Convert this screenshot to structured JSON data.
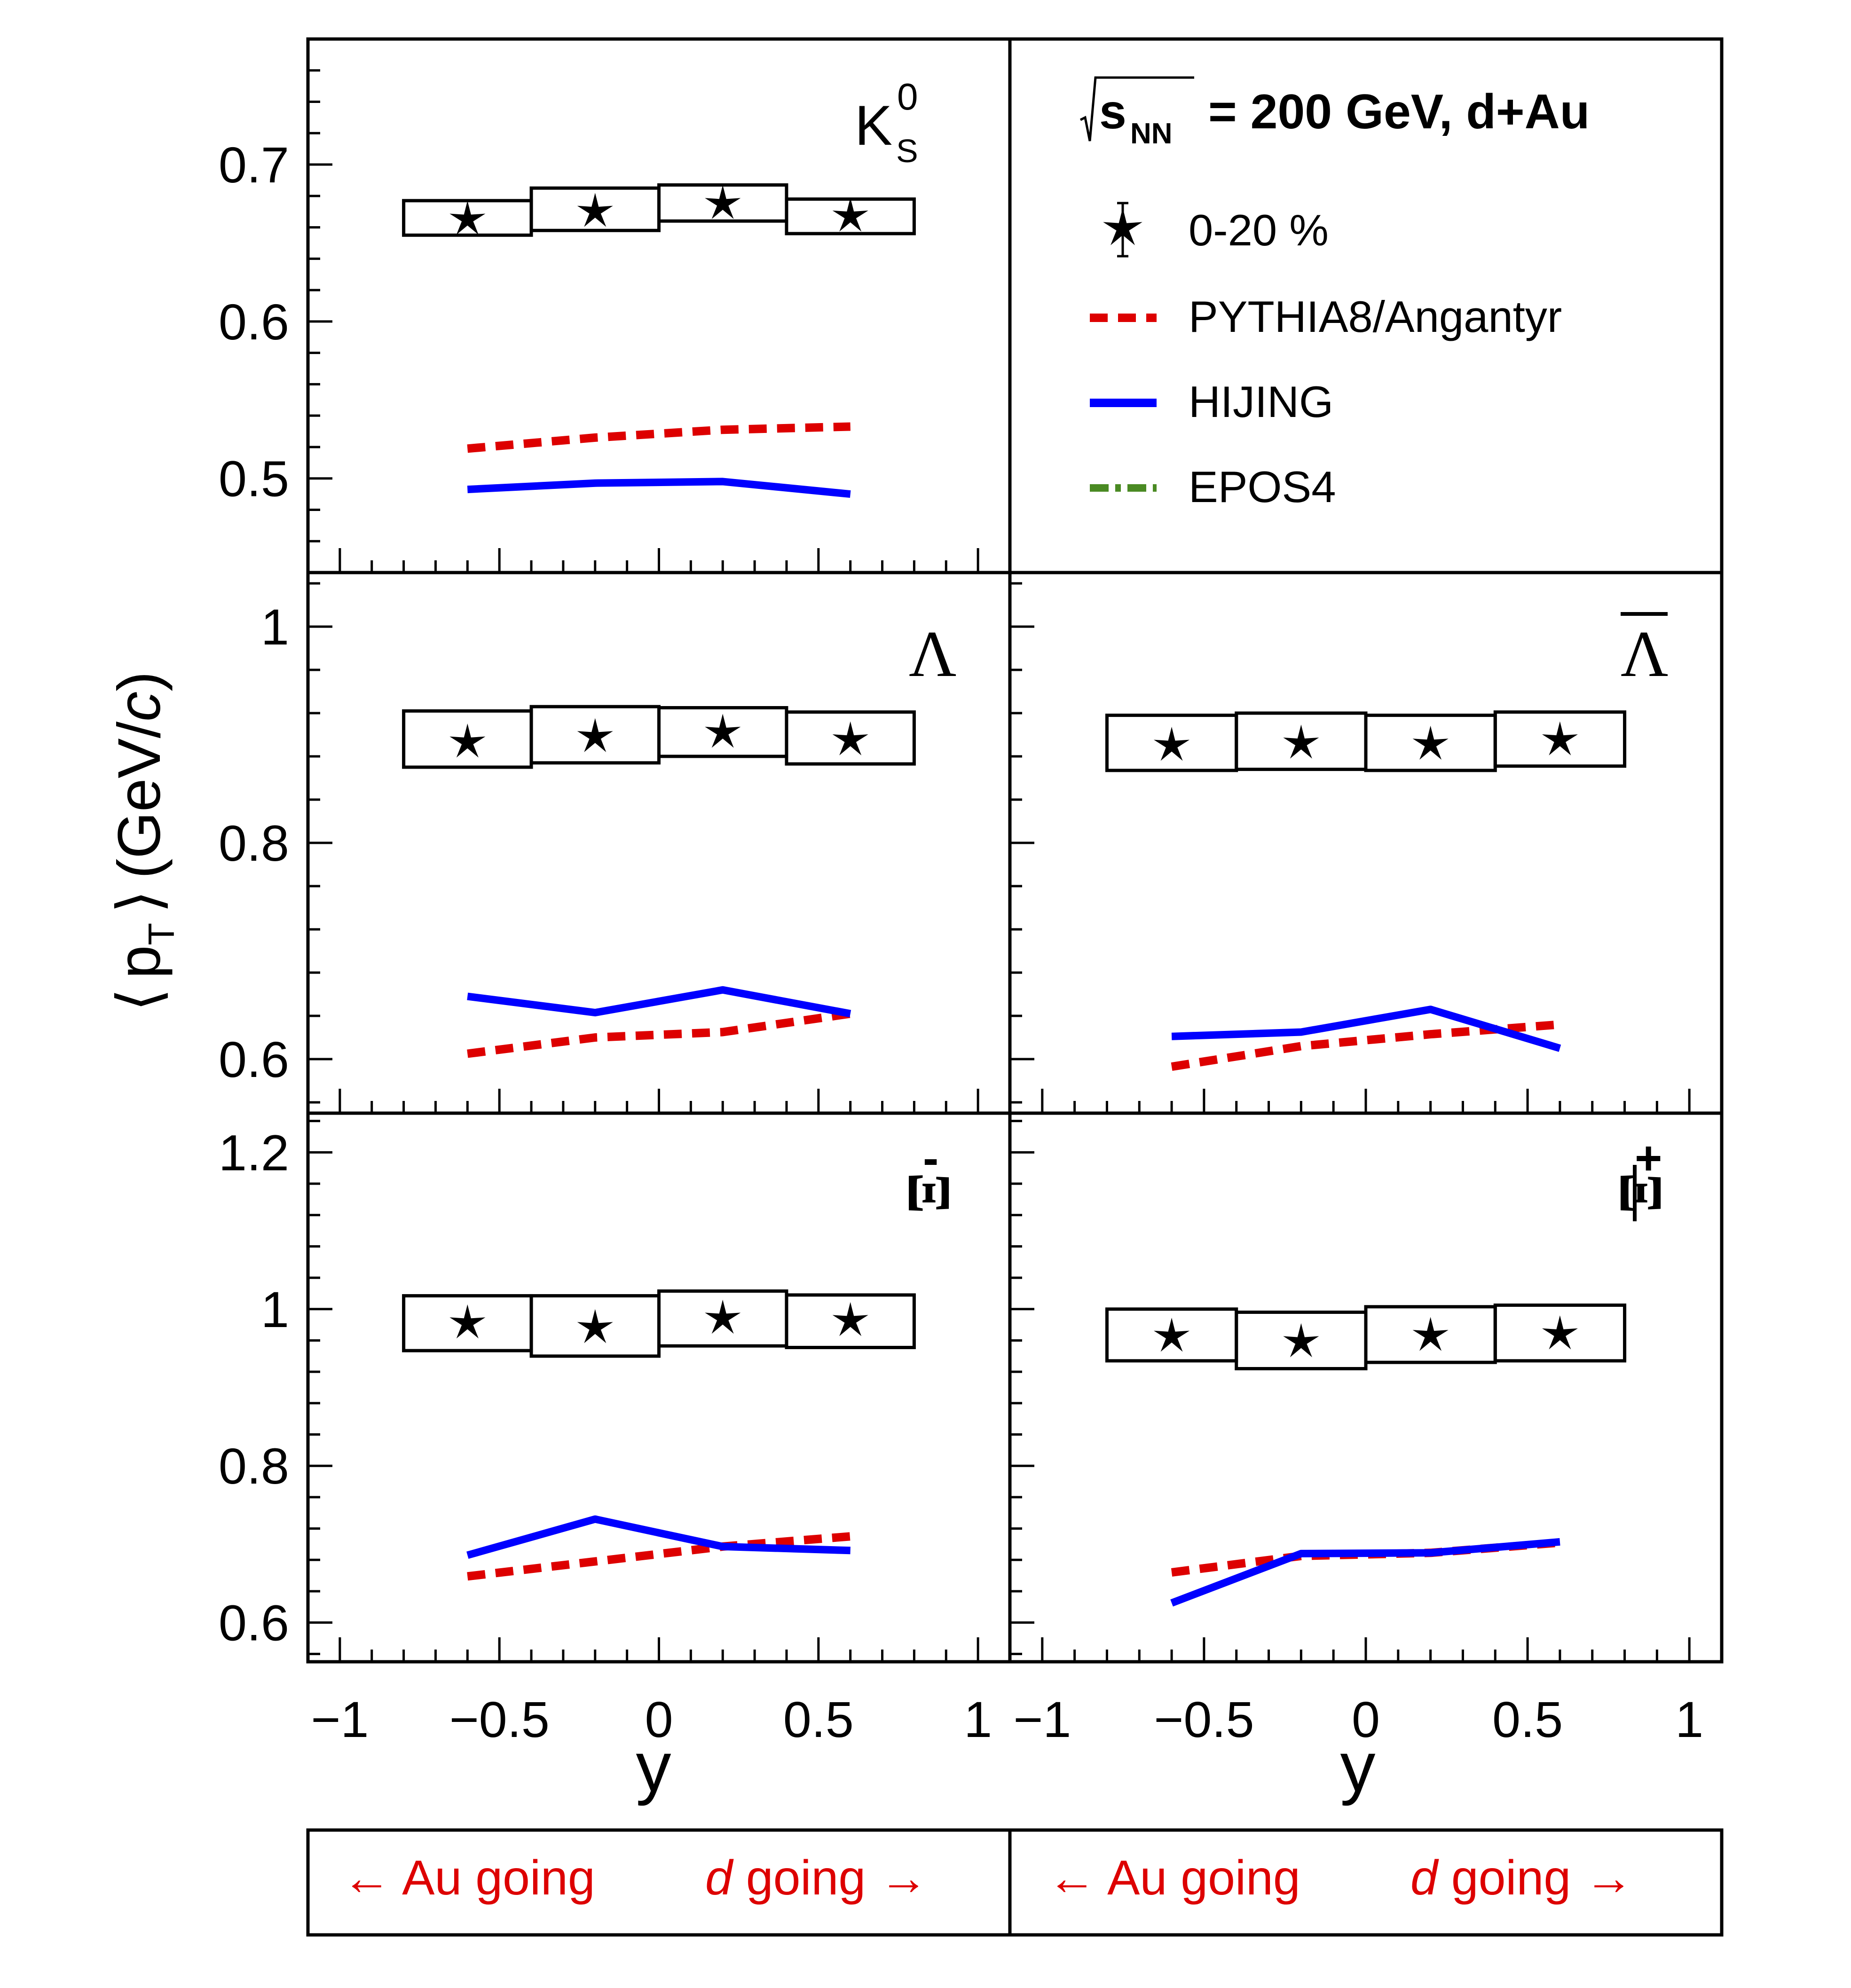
{
  "header": {
    "energy_symbol": "s",
    "energy_subscript": "NN",
    "energy_rest": "= 200 GeV, d+Au"
  },
  "legend": {
    "placement": "top-right",
    "items": [
      {
        "label": "0-20 %",
        "style": "star-with-error-bar",
        "color": "#000000"
      },
      {
        "label": "PYTHIA8/Angantyr",
        "style": "dashed",
        "color": "#dd0000"
      },
      {
        "label": "HIJING",
        "style": "solid",
        "color": "#0000ff"
      },
      {
        "label": "EPOS4",
        "style": "dash-dot",
        "color": "#4a8a23"
      }
    ]
  },
  "axes": {
    "ylabel_open": "⟨",
    "ylabel_p": "p",
    "ylabel_sub": "T",
    "ylabel_close": "⟩",
    "ylabel_unit_a": "(GeV/",
    "ylabel_unit_c": "c",
    "ylabel_unit_b": ")",
    "xlabel": "y",
    "x_ticks": [
      "−1",
      "−0.5",
      "0",
      "0.5",
      "1"
    ],
    "grid": false
  },
  "footer": {
    "left_au": "← Au going",
    "left_d_italic": "d",
    "left_d_rest": " going →",
    "right_au": "← Au going",
    "right_d_italic": "d",
    "right_d_rest": " going →"
  },
  "chart_data": [
    {
      "type": "scatter",
      "particle_base": "K",
      "particle_sup": "0",
      "particle_sub": "S",
      "x": [
        -0.6,
        -0.2,
        0.2,
        0.6
      ],
      "xlim": [
        -1.1,
        1.1
      ],
      "ylim": [
        0.44,
        0.78
      ],
      "y_ticks": [
        "0.5",
        "0.6",
        "0.7"
      ],
      "series": [
        {
          "name": "0-20 %",
          "values": [
            0.665,
            0.67,
            0.675,
            0.667
          ],
          "syst_low": [
            0.655,
            0.658,
            0.664,
            0.656
          ],
          "syst_high": [
            0.677,
            0.685,
            0.687,
            0.678
          ]
        },
        {
          "name": "PYTHIA8/Angantyr",
          "values": [
            0.519,
            0.526,
            0.531,
            0.533
          ]
        },
        {
          "name": "HIJING",
          "values": [
            0.493,
            0.497,
            0.498,
            0.49
          ]
        }
      ]
    },
    {
      "type": "scatter",
      "particle_base": "Λ",
      "particle_bar": false,
      "x": [
        -0.6,
        -0.2,
        0.2,
        0.6
      ],
      "xlim": [
        -1.1,
        1.1
      ],
      "ylim": [
        0.55,
        1.05
      ],
      "y_ticks": [
        "0.6",
        "0.8",
        "1"
      ],
      "series": [
        {
          "name": "0-20 %",
          "values": [
            0.893,
            0.898,
            0.902,
            0.895
          ],
          "syst_low": [
            0.87,
            0.874,
            0.88,
            0.873
          ],
          "syst_high": [
            0.922,
            0.926,
            0.925,
            0.921
          ]
        },
        {
          "name": "PYTHIA8/Angantyr",
          "values": [
            0.605,
            0.62,
            0.625,
            0.642
          ]
        },
        {
          "name": "HIJING",
          "values": [
            0.658,
            0.643,
            0.664,
            0.642
          ]
        }
      ]
    },
    {
      "type": "scatter",
      "particle_base": "Λ",
      "particle_bar": true,
      "x": [
        -0.6,
        -0.2,
        0.2,
        0.6
      ],
      "xlim": [
        -1.1,
        1.1
      ],
      "ylim": [
        0.55,
        1.05
      ],
      "y_ticks": [
        "0.6",
        "0.8",
        "1"
      ],
      "series": [
        {
          "name": "0-20 %",
          "values": [
            0.89,
            0.892,
            0.891,
            0.895
          ],
          "syst_low": [
            0.867,
            0.868,
            0.867,
            0.871
          ],
          "syst_high": [
            0.918,
            0.92,
            0.918,
            0.921
          ]
        },
        {
          "name": "PYTHIA8/Angantyr",
          "values": [
            0.593,
            0.612,
            0.623,
            0.632
          ]
        },
        {
          "name": "HIJING",
          "values": [
            0.621,
            0.625,
            0.646,
            0.61
          ]
        }
      ]
    },
    {
      "type": "scatter",
      "particle_base": "Ξ",
      "particle_sup": "-",
      "particle_bar": false,
      "x": [
        -0.6,
        -0.2,
        0.2,
        0.6
      ],
      "xlim": [
        -1.1,
        1.1
      ],
      "ylim": [
        0.55,
        1.25
      ],
      "y_ticks": [
        "0.6",
        "0.8",
        "1",
        "1.2"
      ],
      "series": [
        {
          "name": "0-20 %",
          "values": [
            0.982,
            0.976,
            0.988,
            0.985
          ],
          "syst_low": [
            0.947,
            0.94,
            0.953,
            0.951
          ],
          "syst_high": [
            1.017,
            1.017,
            1.023,
            1.018
          ]
        },
        {
          "name": "PYTHIA8/Angantyr",
          "values": [
            0.659,
            0.678,
            0.697,
            0.71
          ]
        },
        {
          "name": "HIJING",
          "values": [
            0.686,
            0.732,
            0.697,
            0.692
          ]
        }
      ]
    },
    {
      "type": "scatter",
      "particle_base": "Ξ",
      "particle_sup": "+",
      "particle_bar": true,
      "x": [
        -0.6,
        -0.2,
        0.2,
        0.6
      ],
      "xlim": [
        -1.1,
        1.1
      ],
      "ylim": [
        0.55,
        1.25
      ],
      "y_ticks": [
        "0.6",
        "0.8",
        "1",
        "1.2"
      ],
      "series": [
        {
          "name": "0-20 %",
          "values": [
            0.965,
            0.958,
            0.966,
            0.968
          ],
          "syst_low": [
            0.934,
            0.924,
            0.932,
            0.934
          ],
          "syst_high": [
            1.0,
            0.996,
            1.003,
            1.005
          ]
        },
        {
          "name": "PYTHIA8/Angantyr",
          "values": [
            0.664,
            0.685,
            0.689,
            0.702
          ]
        },
        {
          "name": "HIJING",
          "values": [
            0.625,
            0.688,
            0.689,
            0.703
          ]
        }
      ]
    }
  ]
}
